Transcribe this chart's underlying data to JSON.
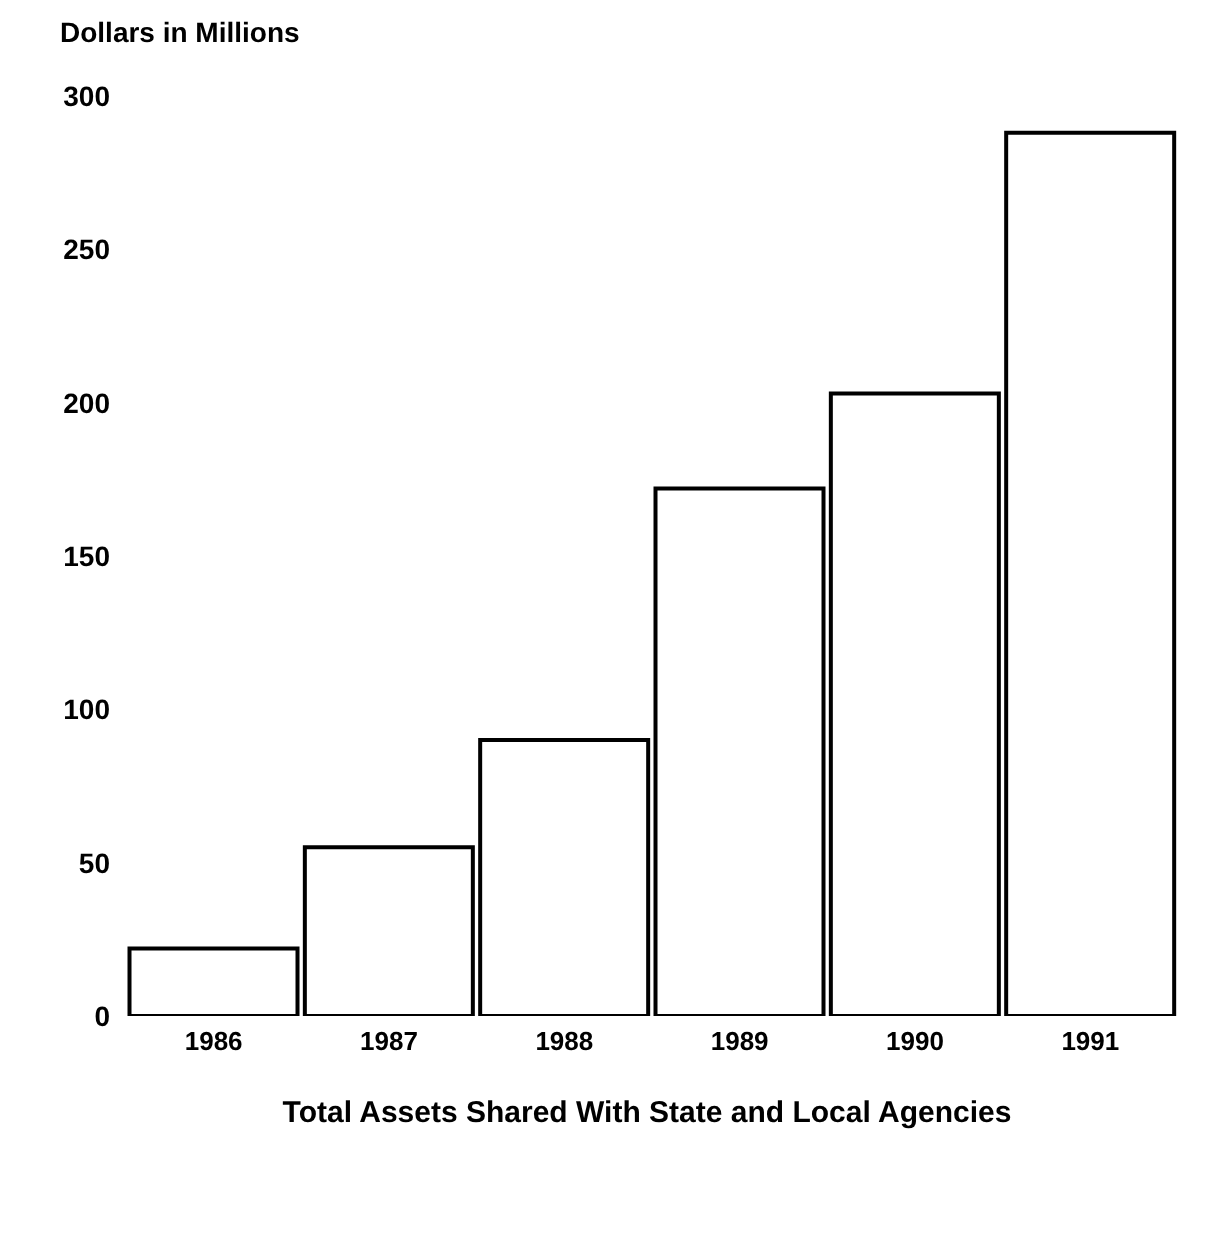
{
  "chart_data": {
    "type": "bar",
    "ylabel": "Dollars in Millions",
    "xlabel": "Total Assets Shared With State and Local Agencies",
    "categories": [
      "1986",
      "1987",
      "1988",
      "1989",
      "1990",
      "1991"
    ],
    "values": [
      22,
      55,
      90,
      172,
      203,
      288
    ],
    "color": "#ffffff",
    "ylim": [
      0,
      300
    ],
    "yticks": [
      0,
      50,
      100,
      150,
      200,
      250,
      300
    ],
    "grid": false,
    "legend": false
  }
}
